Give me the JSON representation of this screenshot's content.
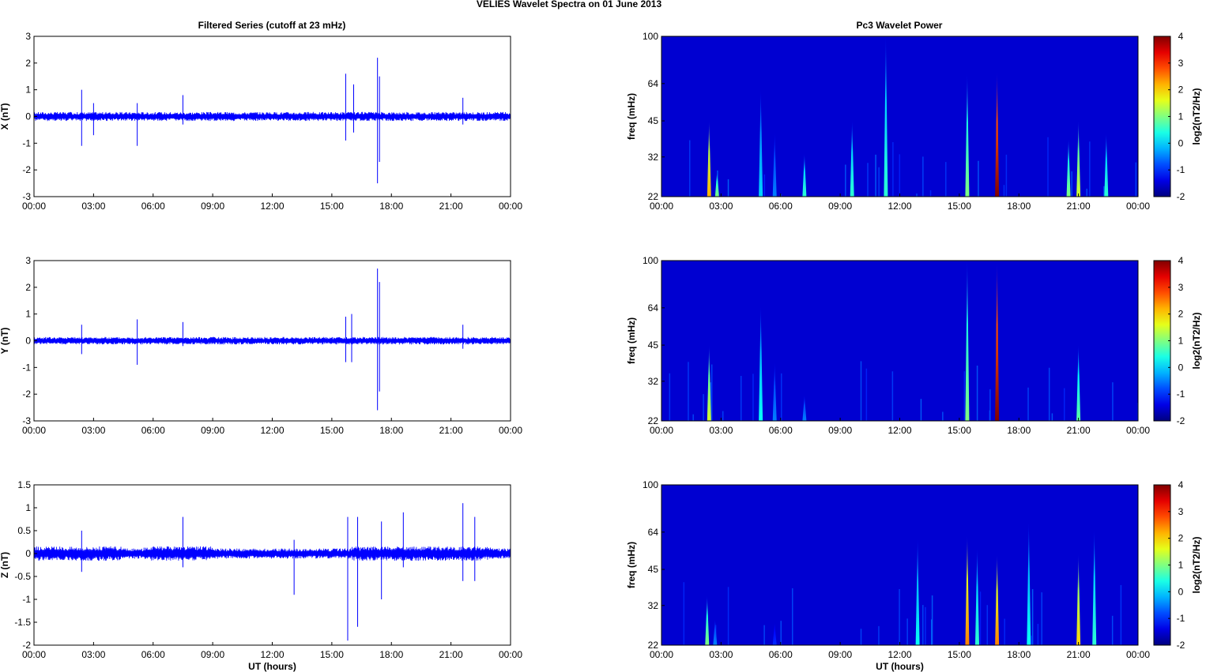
{
  "figure": {
    "suptitle": "VELIES Wavelet Spectra on 01 June      2013",
    "left_title": "Filtered Series (cutoff at 23 mHz)",
    "right_title": "Pc3 Wavelet Power"
  },
  "time_ticks": [
    "00:00",
    "03:00",
    "06:00",
    "09:00",
    "12:00",
    "15:00",
    "18:00",
    "21:00",
    "00:00"
  ],
  "chart_data": [
    {
      "id": "x-series",
      "type": "line",
      "ylabel": "X (nT)",
      "ylim": [
        -3,
        3
      ],
      "yticks": [
        -3,
        -2,
        -1,
        0,
        1,
        2,
        3
      ],
      "xlabel": "",
      "xrange_hours": [
        0,
        24
      ],
      "baseline_noise_nT": 0.12,
      "series": [
        {
          "color": "#0000ff",
          "spikes": [
            {
              "t": 2.4,
              "up": 1.0,
              "down": -1.1
            },
            {
              "t": 3.0,
              "up": 0.5,
              "down": -0.7
            },
            {
              "t": 5.2,
              "up": 0.5,
              "down": -1.1
            },
            {
              "t": 7.5,
              "up": 0.8,
              "down": -0.3
            },
            {
              "t": 15.7,
              "up": 1.6,
              "down": -0.9
            },
            {
              "t": 16.1,
              "up": 1.2,
              "down": -0.6
            },
            {
              "t": 17.3,
              "up": 2.2,
              "down": -2.5
            },
            {
              "t": 17.4,
              "up": 1.5,
              "down": -1.7
            },
            {
              "t": 21.6,
              "up": 0.7,
              "down": -0.3
            }
          ]
        }
      ]
    },
    {
      "id": "y-series",
      "type": "line",
      "ylabel": "Y (nT)",
      "ylim": [
        -3,
        3
      ],
      "yticks": [
        -3,
        -2,
        -1,
        0,
        1,
        2,
        3
      ],
      "xlabel": "",
      "xrange_hours": [
        0,
        24
      ],
      "baseline_noise_nT": 0.1,
      "series": [
        {
          "color": "#0000ff",
          "spikes": [
            {
              "t": 2.4,
              "up": 0.6,
              "down": -0.5
            },
            {
              "t": 5.2,
              "up": 0.8,
              "down": -0.9
            },
            {
              "t": 7.5,
              "up": 0.7,
              "down": -0.2
            },
            {
              "t": 15.7,
              "up": 0.9,
              "down": -0.8
            },
            {
              "t": 16.0,
              "up": 1.0,
              "down": -0.8
            },
            {
              "t": 17.3,
              "up": 2.7,
              "down": -2.6
            },
            {
              "t": 17.4,
              "up": 2.2,
              "down": -1.9
            },
            {
              "t": 21.6,
              "up": 0.6,
              "down": -0.3
            }
          ]
        }
      ]
    },
    {
      "id": "z-series",
      "type": "line",
      "ylabel": "Z (nT)",
      "ylim": [
        -2,
        1.5
      ],
      "yticks": [
        -2,
        -1.5,
        -1,
        -0.5,
        0,
        0.5,
        1,
        1.5
      ],
      "xlabel": "UT (hours)",
      "xrange_hours": [
        0,
        24
      ],
      "baseline_noise_nT": 0.08,
      "series": [
        {
          "color": "#0000ff",
          "spikes": [
            {
              "t": 2.4,
              "up": 0.5,
              "down": -0.4
            },
            {
              "t": 7.5,
              "up": 0.8,
              "down": -0.3
            },
            {
              "t": 13.1,
              "up": 0.3,
              "down": -0.9
            },
            {
              "t": 15.8,
              "up": 0.8,
              "down": -1.9
            },
            {
              "t": 16.3,
              "up": 0.8,
              "down": -1.6
            },
            {
              "t": 17.5,
              "up": 0.7,
              "down": -1.0
            },
            {
              "t": 18.6,
              "up": 0.9,
              "down": -0.3
            },
            {
              "t": 21.6,
              "up": 1.1,
              "down": -0.6
            },
            {
              "t": 22.2,
              "up": 0.8,
              "down": -0.6
            }
          ]
        }
      ]
    },
    {
      "id": "x-wavelet",
      "type": "heatmap",
      "ylabel": "freq (mHz)",
      "yticks": [
        22,
        32,
        45,
        64,
        100
      ],
      "ylim": [
        22,
        100
      ],
      "yscale": "log",
      "xlabel": "",
      "xrange_hours": [
        0,
        24
      ],
      "colorbar_label": "log2(nT2/Hz)",
      "colorbar_ticks": [
        -2,
        -1,
        0,
        1,
        2,
        3,
        4
      ],
      "clim": [
        -2,
        4
      ],
      "streaks": [
        {
          "t": 2.4,
          "fmax": 45,
          "level": 2.2
        },
        {
          "t": 2.8,
          "fmax": 28,
          "level": 1.0
        },
        {
          "t": 5.0,
          "fmax": 60,
          "level": 0.0
        },
        {
          "t": 5.7,
          "fmax": 40,
          "level": -0.5
        },
        {
          "t": 7.2,
          "fmax": 33,
          "level": 0.5
        },
        {
          "t": 9.6,
          "fmax": 45,
          "level": 0.5
        },
        {
          "t": 11.3,
          "fmax": 100,
          "level": 0.5
        },
        {
          "t": 15.4,
          "fmax": 70,
          "level": 1.0
        },
        {
          "t": 16.9,
          "fmax": 72,
          "level": 4.0
        },
        {
          "t": 20.5,
          "fmax": 38,
          "level": 1.0
        },
        {
          "t": 21.0,
          "fmax": 45,
          "level": 1.5
        },
        {
          "t": 22.4,
          "fmax": 40,
          "level": 0.5
        }
      ]
    },
    {
      "id": "y-wavelet",
      "type": "heatmap",
      "ylabel": "freq (mHz)",
      "yticks": [
        22,
        32,
        45,
        64,
        100
      ],
      "ylim": [
        22,
        100
      ],
      "yscale": "log",
      "xlabel": "",
      "xrange_hours": [
        0,
        24
      ],
      "colorbar_label": "log2(nT2/Hz)",
      "colorbar_ticks": [
        -2,
        -1,
        0,
        1,
        2,
        3,
        4
      ],
      "clim": [
        -2,
        4
      ],
      "streaks": [
        {
          "t": 2.4,
          "fmax": 45,
          "level": 1.5
        },
        {
          "t": 5.0,
          "fmax": 65,
          "level": 0.3
        },
        {
          "t": 5.7,
          "fmax": 38,
          "level": -0.5
        },
        {
          "t": 7.2,
          "fmax": 28,
          "level": -0.5
        },
        {
          "t": 15.4,
          "fmax": 100,
          "level": 1.0
        },
        {
          "t": 16.9,
          "fmax": 100,
          "level": 4.0
        },
        {
          "t": 21.0,
          "fmax": 45,
          "level": 0.8
        }
      ]
    },
    {
      "id": "z-wavelet",
      "type": "heatmap",
      "ylabel": "freq (mHz)",
      "yticks": [
        22,
        32,
        45,
        64,
        100
      ],
      "ylim": [
        22,
        100
      ],
      "yscale": "log",
      "xlabel": "UT (hours)",
      "xrange_hours": [
        0,
        24
      ],
      "colorbar_label": "log2(nT2/Hz)",
      "colorbar_ticks": [
        -2,
        -1,
        0,
        1,
        2,
        3,
        4
      ],
      "clim": [
        -2,
        4
      ],
      "streaks": [
        {
          "t": 2.3,
          "fmax": 35,
          "level": 1.0
        },
        {
          "t": 2.7,
          "fmax": 28,
          "level": -0.5
        },
        {
          "t": 5.7,
          "fmax": 27,
          "level": -1.0
        },
        {
          "t": 12.9,
          "fmax": 60,
          "level": 0.3
        },
        {
          "t": 15.4,
          "fmax": 62,
          "level": 2.5
        },
        {
          "t": 15.9,
          "fmax": 55,
          "level": 0.5
        },
        {
          "t": 16.9,
          "fmax": 52,
          "level": 2.5
        },
        {
          "t": 18.5,
          "fmax": 70,
          "level": 0.3
        },
        {
          "t": 21.0,
          "fmax": 52,
          "level": 2.0
        },
        {
          "t": 21.8,
          "fmax": 65,
          "level": 0.5
        }
      ]
    }
  ]
}
